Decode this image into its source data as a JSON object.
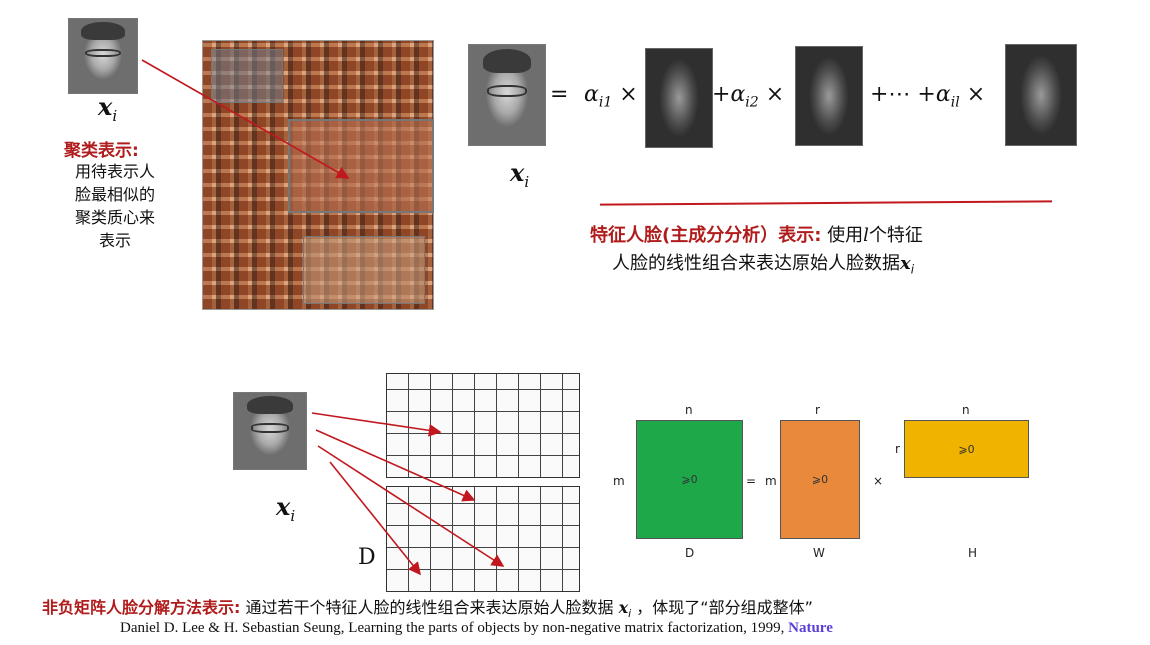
{
  "top_left": {
    "xi_symbol": "x",
    "xi_sub": "i",
    "cluster_title": "聚类表示:",
    "cluster_desc_lines": [
      "用待表示人",
      "脸最相似的",
      "聚类质心来",
      "表示"
    ]
  },
  "equation": {
    "xi_symbol": "x",
    "xi_sub": "i",
    "eq_sign": "=",
    "t1_coef": "α",
    "t1_sub": "i1",
    "times": "×",
    "plus": "+",
    "t2_coef": "α",
    "t2_sub": "i2",
    "ellipsis": "+⋯ +",
    "tl_coef": "α",
    "tl_sub": "il"
  },
  "pca_caption": {
    "title": "特征人脸(主成分分析）表示:",
    "line1_rest": " 使用",
    "l_symbol": "l",
    "line1_end": "个特征",
    "line2": "人脸的线性组合来表达原始人脸数据",
    "xi_symbol": "x",
    "xi_sub": "i"
  },
  "nmf": {
    "xi_symbol": "x",
    "xi_sub": "i",
    "d_label": "D",
    "matrix_d": {
      "top": "n",
      "left": "m",
      "inner": "⩾0",
      "bottom": "D",
      "color": "#1fa84a"
    },
    "equals": "=",
    "matrix_w": {
      "top": "r",
      "left": "m",
      "inner": "⩾0",
      "bottom": "W",
      "color": "#e8893b"
    },
    "times": "×",
    "matrix_h": {
      "top": "n",
      "left": "r",
      "inner": "⩾0",
      "bottom": "H",
      "color": "#f0b400"
    }
  },
  "bottom_caption": {
    "title": "非负矩阵人脸分解方法表示:",
    "text": " 通过若干个特征人脸的线性组合来表达原始人脸数据 ",
    "xi_symbol": "x",
    "xi_sub": "i",
    "rest": " ，体现了“部分组成整体”"
  },
  "citation": {
    "text": "Daniel D. Lee & H. Sebastian Seung, Learning the parts of objects by non-negative matrix factorization, 1999, ",
    "journal": "Nature",
    "journal_color": "#5b3fd6"
  },
  "colors": {
    "red": "#b01c1c",
    "arrow": "#c0181e"
  }
}
